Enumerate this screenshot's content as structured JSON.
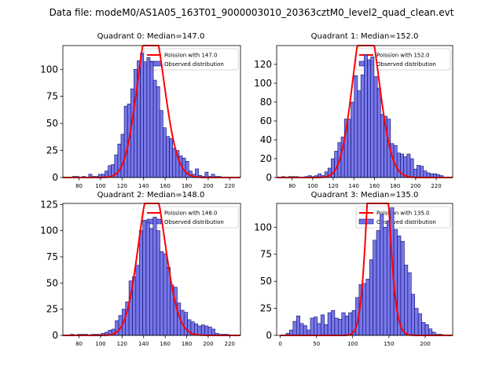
{
  "figure": {
    "suptitle": "Data file: modeM0/AS1A05_163T01_9000003010_20363cztM0_level2_quad_clean.evt"
  },
  "colors": {
    "bar_fill": "#7070e8",
    "bar_edge": "#0c0c6e",
    "poisson_line": "#ff0000",
    "axes": "#000000",
    "background": "#ffffff"
  },
  "chart_data": [
    {
      "type": "bar",
      "title": "Quadrant 0: Median=147.0",
      "median": 147.0,
      "xlim": [
        65,
        230
      ],
      "ylim": [
        0,
        122
      ],
      "xticks": [
        80,
        100,
        120,
        140,
        160,
        180,
        200,
        220
      ],
      "yticks": [
        0,
        25,
        50,
        75,
        100
      ],
      "bin_width": 3.0,
      "bins": {
        "start": 74,
        "counts": [
          1,
          1,
          0,
          1,
          0,
          3,
          1,
          1,
          3,
          3,
          6,
          11,
          12,
          21,
          31,
          40,
          66,
          68,
          82,
          100,
          108,
          115,
          107,
          111,
          107,
          90,
          84,
          62,
          46,
          38,
          36,
          27,
          25,
          20,
          18,
          15,
          6,
          3,
          8,
          2,
          1,
          5,
          1,
          3,
          1,
          1
        ]
      },
      "legend": {
        "location": "upper right",
        "line_label": "Poission with 147.0",
        "bar_label": "Observed distribution"
      }
    },
    {
      "type": "bar",
      "title": "Quadrant 1: Median=152.0",
      "median": 152.0,
      "xlim": [
        65,
        236
      ],
      "ylim": [
        0,
        140
      ],
      "xticks": [
        80,
        100,
        120,
        140,
        160,
        180,
        200,
        220
      ],
      "yticks": [
        0,
        20,
        40,
        60,
        80,
        100,
        120
      ],
      "bin_width": 3.2,
      "bins": {
        "start": 70,
        "counts": [
          1,
          0,
          1,
          1,
          1,
          0,
          0,
          1,
          2,
          1,
          2,
          4,
          2,
          6,
          10,
          20,
          28,
          37,
          43,
          62,
          62,
          80,
          108,
          92,
          109,
          130,
          125,
          128,
          107,
          95,
          67,
          65,
          62,
          36,
          34,
          26,
          25,
          22,
          25,
          20,
          9,
          13,
          12,
          7,
          5,
          4,
          4,
          3,
          2
        ]
      },
      "legend": {
        "location": "upper right",
        "line_label": "Poission with 152.0",
        "bar_label": "Observed distribution"
      }
    },
    {
      "type": "bar",
      "title": "Quadrant 2: Median=148.0",
      "median": 148.0,
      "xlim": [
        65,
        230
      ],
      "ylim": [
        0,
        126
      ],
      "xticks": [
        80,
        100,
        120,
        140,
        160,
        180,
        200,
        220
      ],
      "yticks": [
        0,
        25,
        50,
        75,
        100,
        125
      ],
      "bin_width": 3.2,
      "bins": {
        "start": 72,
        "counts": [
          1,
          0,
          1,
          1,
          1,
          0,
          1,
          1,
          1,
          2,
          3,
          5,
          6,
          14,
          19,
          25,
          32,
          52,
          56,
          67,
          100,
          110,
          108,
          102,
          113,
          100,
          80,
          78,
          65,
          48,
          46,
          31,
          24,
          22,
          15,
          13,
          11,
          9,
          10,
          9,
          8,
          6,
          2,
          1,
          1,
          1
        ]
      },
      "legend": {
        "location": "upper right",
        "line_label": "Poission with 148.0",
        "bar_label": "Observed distribution"
      }
    },
    {
      "type": "bar",
      "title": "Quadrant 3: Median=135.0",
      "median": 135.0,
      "xlim": [
        -5,
        238
      ],
      "ylim": [
        0,
        122
      ],
      "xticks": [
        0,
        50,
        100,
        150,
        200
      ],
      "yticks": [
        0,
        25,
        50,
        75,
        100
      ],
      "bin_width": 4.8,
      "bins": {
        "start": 8,
        "counts": [
          2,
          5,
          13,
          18,
          11,
          9,
          5,
          16,
          17,
          11,
          19,
          10,
          21,
          23,
          16,
          15,
          21,
          18,
          21,
          23,
          35,
          47,
          48,
          52,
          70,
          88,
          97,
          112,
          100,
          106,
          118,
          98,
          92,
          87,
          65,
          58,
          38,
          25,
          20,
          12,
          10,
          6,
          3,
          1,
          1
        ]
      },
      "legend": {
        "location": "upper right",
        "line_label": "Poission with 135.0",
        "bar_label": "Observed distribution"
      }
    }
  ]
}
